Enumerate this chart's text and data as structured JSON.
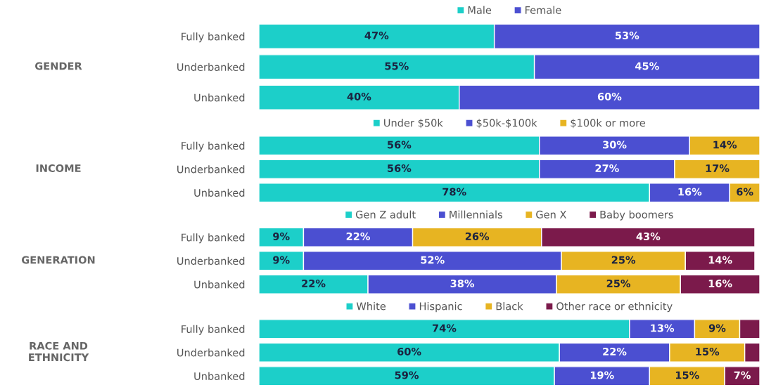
{
  "chart_data": [
    {
      "type": "bar",
      "orientation": "horizontal",
      "stacked": true,
      "ylabel": "GENDER",
      "legend": "top",
      "categories": [
        "Fully banked",
        "Underbanked",
        "Unbanked"
      ],
      "series": [
        {
          "name": "Male",
          "color": "#1ccfc9",
          "values": [
            47,
            55,
            40
          ],
          "value_labels": [
            "47%",
            "55%",
            "40%"
          ]
        },
        {
          "name": "Female",
          "color": "#4b4fd1",
          "values": [
            53,
            45,
            60
          ],
          "value_labels": [
            "53%",
            "45%",
            "60%"
          ]
        }
      ]
    },
    {
      "type": "bar",
      "orientation": "horizontal",
      "stacked": true,
      "ylabel": "INCOME",
      "legend": "top",
      "categories": [
        "Fully banked",
        "Underbanked",
        "Unbanked"
      ],
      "series": [
        {
          "name": "Under $50k",
          "color": "#1ccfc9",
          "values": [
            56,
            56,
            78
          ],
          "value_labels": [
            "56%",
            "56%",
            "78%"
          ]
        },
        {
          "name": "$50k-$100k",
          "color": "#4b4fd1",
          "values": [
            30,
            27,
            16
          ],
          "value_labels": [
            "30%",
            "27%",
            "16%"
          ]
        },
        {
          "name": "$100k or more",
          "color": "#e7b422",
          "values": [
            14,
            17,
            6
          ],
          "value_labels": [
            "14%",
            "17%",
            "6%"
          ]
        }
      ]
    },
    {
      "type": "bar",
      "orientation": "horizontal",
      "stacked": true,
      "ylabel": "GENERATION",
      "legend": "top",
      "categories": [
        "Fully banked",
        "Underbanked",
        "Unbanked"
      ],
      "series": [
        {
          "name": "Gen Z adult",
          "color": "#1ccfc9",
          "values": [
            9,
            9,
            22
          ],
          "value_labels": [
            "9%",
            "9%",
            "22%"
          ]
        },
        {
          "name": "Millennials",
          "color": "#4b4fd1",
          "values": [
            22,
            52,
            38
          ],
          "value_labels": [
            "22%",
            "52%",
            "38%"
          ]
        },
        {
          "name": "Gen X",
          "color": "#e7b422",
          "values": [
            26,
            25,
            25
          ],
          "value_labels": [
            "26%",
            "25%",
            "25%"
          ]
        },
        {
          "name": "Baby boomers",
          "color": "#7b1a4b",
          "values": [
            43,
            14,
            16
          ],
          "value_labels": [
            "43%",
            "14%",
            "16%"
          ]
        }
      ]
    },
    {
      "type": "bar",
      "orientation": "horizontal",
      "stacked": true,
      "ylabel": "RACE AND\nETHNICITY",
      "legend": "top",
      "categories": [
        "Fully banked",
        "Underbanked",
        "Unbanked"
      ],
      "series": [
        {
          "name": "White",
          "color": "#1ccfc9",
          "values": [
            74,
            60,
            59
          ],
          "value_labels": [
            "74%",
            "60%",
            "59%"
          ]
        },
        {
          "name": "Hispanic",
          "color": "#4b4fd1",
          "values": [
            13,
            22,
            19
          ],
          "value_labels": [
            "13%",
            "22%",
            "19%"
          ]
        },
        {
          "name": "Black",
          "color": "#e7b422",
          "values": [
            9,
            15,
            15
          ],
          "value_labels": [
            "9%",
            "15%",
            "15%"
          ]
        },
        {
          "name": "Other race or ethnicity",
          "color": "#7b1a4b",
          "values": [
            4,
            3,
            7
          ],
          "value_labels": [
            null,
            null,
            "7%"
          ]
        }
      ]
    }
  ]
}
